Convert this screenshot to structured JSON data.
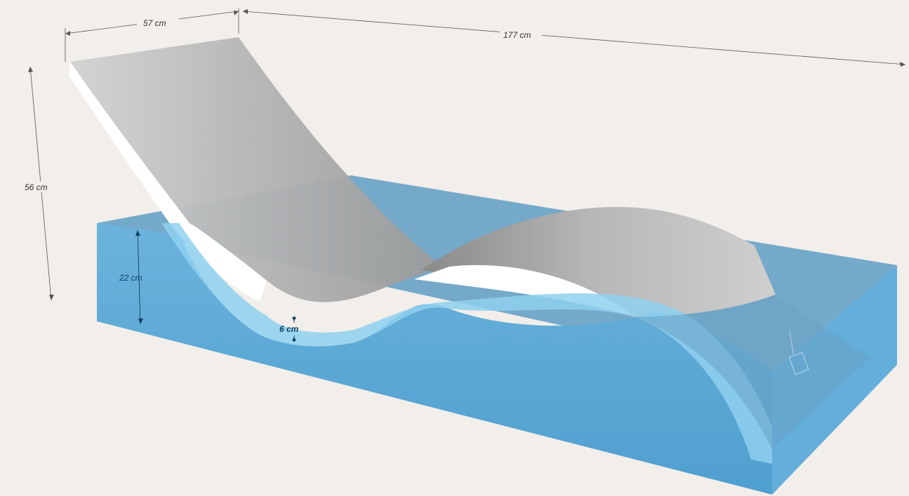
{
  "dimensions": {
    "width": "57 cm",
    "length": "177 cm",
    "height": "56 cm",
    "base_height": "22 cm",
    "thickness": "6 cm"
  },
  "colors": {
    "background": "#f2eeea",
    "water": "#5aa8d4",
    "lounger_top": "#bdbdbd",
    "lounger_edge": "#ffffff"
  }
}
